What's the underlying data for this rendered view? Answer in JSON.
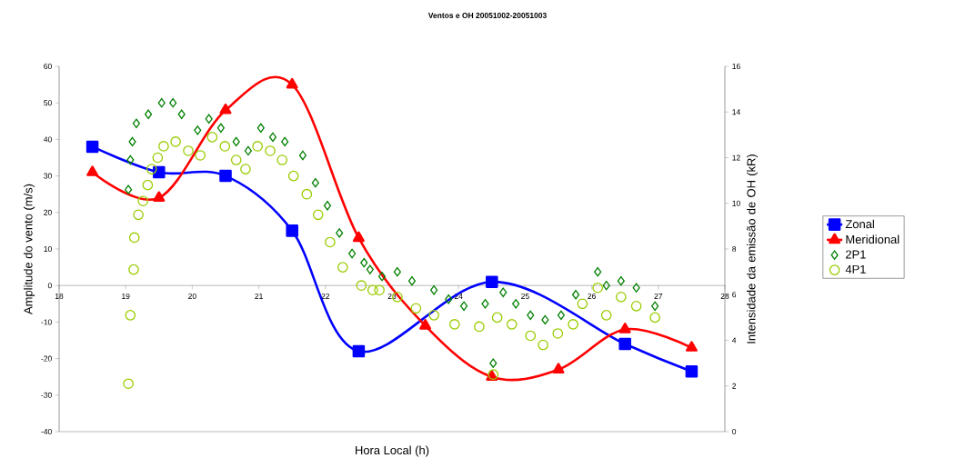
{
  "chart_data": {
    "type": "line",
    "title": "Ventos e OH 20051002-20051003",
    "xlabel": "Hora Local (h)",
    "ylabel": "Amplitude do vento (m/s)",
    "y2label": "Intensidade da emissão de OH (kR)",
    "xlim": [
      18,
      28
    ],
    "xticks": [
      18,
      19,
      20,
      21,
      22,
      23,
      24,
      25,
      26,
      27,
      28
    ],
    "ylim": [
      -40,
      60
    ],
    "yticks": [
      -40,
      -30,
      -20,
      -10,
      0,
      10,
      20,
      30,
      40,
      50,
      60
    ],
    "y2lim": [
      0,
      16
    ],
    "y2ticks": [
      0,
      2,
      4,
      6,
      8,
      10,
      12,
      14,
      16
    ],
    "grid": false,
    "legend": "right",
    "series": [
      {
        "name": "Zonal",
        "type": "line",
        "color": "#0000ff",
        "marker": "square",
        "x": [
          18.5,
          19.5,
          20.5,
          21.5,
          22.5,
          24.5,
          26.5,
          27.5
        ],
        "values": [
          38,
          31,
          30,
          15,
          -18,
          1,
          -16,
          -23.5
        ]
      },
      {
        "name": "Meridional",
        "type": "line",
        "color": "#ff0000",
        "marker": "triangle",
        "x": [
          18.5,
          19.5,
          20.5,
          21.5,
          22.5,
          23.5,
          24.5,
          25.5,
          26.5,
          27.5
        ],
        "values": [
          31,
          24,
          48,
          55,
          13,
          -11,
          -25,
          -23,
          -12,
          -17
        ]
      },
      {
        "name": "2P1",
        "type": "scatter",
        "axis": "y2",
        "color": "#008000",
        "marker": "diamond",
        "x": [
          19.04,
          19.07,
          19.1,
          19.16,
          19.34,
          19.54,
          19.71,
          19.84,
          20.08,
          20.25,
          20.43,
          20.66,
          20.84,
          21.03,
          21.21,
          21.39,
          21.66,
          21.85,
          22.03,
          22.21,
          22.4,
          22.58,
          22.67,
          22.85,
          23.08,
          23.3,
          23.63,
          23.85,
          24.08,
          24.4,
          24.52,
          24.67,
          24.86,
          25.08,
          25.3,
          25.54,
          25.76,
          26.09,
          26.22,
          26.44,
          26.67,
          26.95
        ],
        "values": [
          10.6,
          11.9,
          12.7,
          13.5,
          13.9,
          14.4,
          14.4,
          13.9,
          13.2,
          13.7,
          13.3,
          12.7,
          12.3,
          13.3,
          12.9,
          12.7,
          12.1,
          10.9,
          9.9,
          8.7,
          7.8,
          7.4,
          7.1,
          6.8,
          7.0,
          6.6,
          6.2,
          5.8,
          5.5,
          5.6,
          3.0,
          6.1,
          5.6,
          5.1,
          4.9,
          5.1,
          6.0,
          7.0,
          6.4,
          6.6,
          6.3,
          5.5
        ]
      },
      {
        "name": "4P1",
        "type": "scatter",
        "axis": "y2",
        "color": "#99cc00",
        "marker": "circle",
        "x": [
          19.04,
          19.07,
          19.12,
          19.13,
          19.19,
          19.26,
          19.33,
          19.39,
          19.48,
          19.57,
          19.75,
          19.94,
          20.12,
          20.3,
          20.49,
          20.66,
          20.8,
          20.98,
          21.17,
          21.35,
          21.52,
          21.72,
          21.89,
          22.07,
          22.26,
          22.54,
          22.71,
          22.81,
          23.08,
          23.36,
          23.63,
          23.94,
          24.31,
          24.52,
          24.58,
          24.8,
          25.08,
          25.27,
          25.49,
          25.72,
          25.86,
          26.09,
          26.22,
          26.44,
          26.67,
          26.95
        ],
        "values": [
          2.1,
          5.1,
          7.1,
          8.5,
          9.5,
          10.1,
          10.8,
          11.5,
          12.0,
          12.5,
          12.7,
          12.3,
          12.1,
          12.9,
          12.5,
          11.9,
          11.5,
          12.5,
          12.3,
          11.9,
          11.2,
          10.4,
          9.5,
          8.3,
          7.2,
          6.4,
          6.2,
          6.2,
          5.9,
          5.4,
          5.1,
          4.7,
          4.6,
          2.5,
          5.0,
          4.7,
          4.2,
          3.8,
          4.3,
          4.7,
          5.6,
          6.3,
          5.1,
          5.9,
          5.5,
          5.0
        ]
      }
    ]
  }
}
